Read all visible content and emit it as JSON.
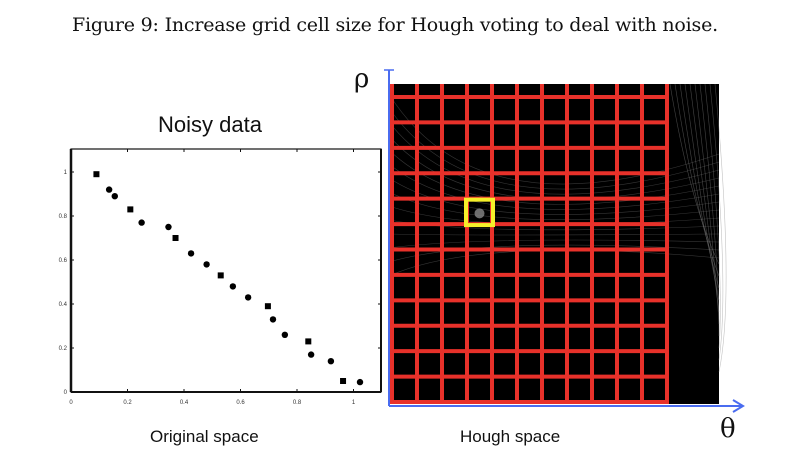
{
  "figure": {
    "caption": "Figure 9: Increase grid cell size for Hough voting to deal with noise.",
    "left_panel_label": "Original space",
    "right_panel_label": "Hough space",
    "rho_label": "ρ",
    "theta_label": "θ"
  },
  "colors": {
    "grid": "#e8312a",
    "highlight": "#f5f02a",
    "axis_arrow": "#4a6cf0",
    "hough_bg": "#000000"
  },
  "hough": {
    "grid_columns": 11,
    "grid_rows": 12,
    "highlight_cell": {
      "column": 3,
      "row": 5
    }
  },
  "chart_data": {
    "type": "scatter",
    "title": "Noisy data",
    "xlabel": "",
    "ylabel": "",
    "xlim": [
      0,
      1.1
    ],
    "ylim": [
      0,
      1.1
    ],
    "xticks": [
      "0",
      "0.2",
      "0.4",
      "0.6",
      "0.8",
      "1"
    ],
    "yticks": [
      "0",
      "0.2",
      "0.4",
      "0.6",
      "0.8",
      "1"
    ],
    "grid": false,
    "points": [
      {
        "x": 0.09,
        "y": 0.99
      },
      {
        "x": 0.135,
        "y": 0.92
      },
      {
        "x": 0.155,
        "y": 0.89
      },
      {
        "x": 0.21,
        "y": 0.83
      },
      {
        "x": 0.25,
        "y": 0.77
      },
      {
        "x": 0.345,
        "y": 0.75
      },
      {
        "x": 0.37,
        "y": 0.7
      },
      {
        "x": 0.425,
        "y": 0.63
      },
      {
        "x": 0.48,
        "y": 0.58
      },
      {
        "x": 0.53,
        "y": 0.53
      },
      {
        "x": 0.573,
        "y": 0.48
      },
      {
        "x": 0.627,
        "y": 0.43
      },
      {
        "x": 0.697,
        "y": 0.39
      },
      {
        "x": 0.715,
        "y": 0.33
      },
      {
        "x": 0.757,
        "y": 0.26
      },
      {
        "x": 0.84,
        "y": 0.23
      },
      {
        "x": 0.85,
        "y": 0.17
      },
      {
        "x": 0.92,
        "y": 0.14
      },
      {
        "x": 0.963,
        "y": 0.05
      },
      {
        "x": 1.023,
        "y": 0.045
      }
    ]
  }
}
